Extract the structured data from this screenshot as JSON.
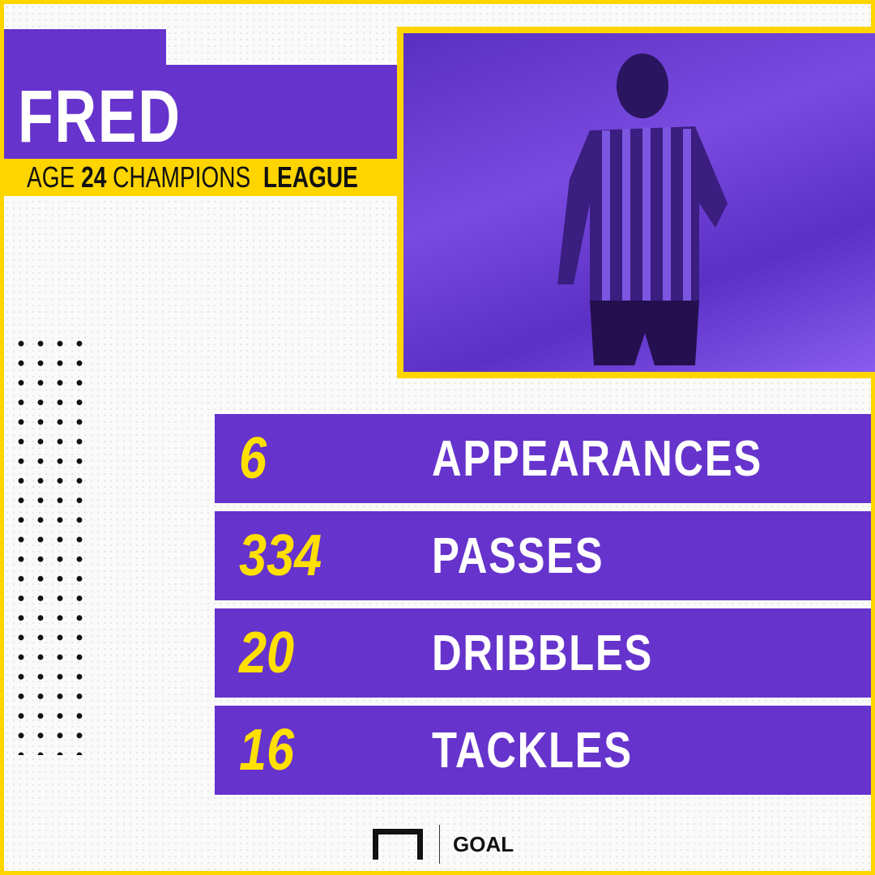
{
  "player": {
    "name": "FRED",
    "age_label": "AGE",
    "age": "24",
    "competition_light": "CHAMPIONS",
    "competition_bold": "LEAGUE"
  },
  "colors": {
    "purple": "#6633cc",
    "yellow": "#ffd500",
    "value_yellow": "#ffe000"
  },
  "stats": [
    {
      "value": "6",
      "label": "APPEARANCES"
    },
    {
      "value": "334",
      "label": "PASSES"
    },
    {
      "value": "20",
      "label": "DRIBBLES"
    },
    {
      "value": "16",
      "label": "TACKLES"
    }
  ],
  "brand": {
    "name": "GOAL",
    "icon": "goal-frame-icon"
  }
}
